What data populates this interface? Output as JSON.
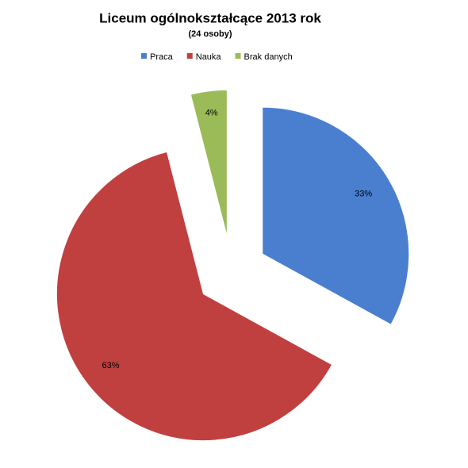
{
  "chart_data": {
    "type": "pie",
    "title": "Liceum ogólnokształcące 2013 rok",
    "subtitle": "(24 osoby)",
    "categories": [
      "Praca",
      "Nauka",
      "Brak danych"
    ],
    "values": [
      33,
      63,
      4
    ],
    "value_labels": [
      "33%",
      "63%",
      "4%"
    ],
    "colors": [
      "#4a7fd0",
      "#c0403f",
      "#9bbb59"
    ]
  }
}
